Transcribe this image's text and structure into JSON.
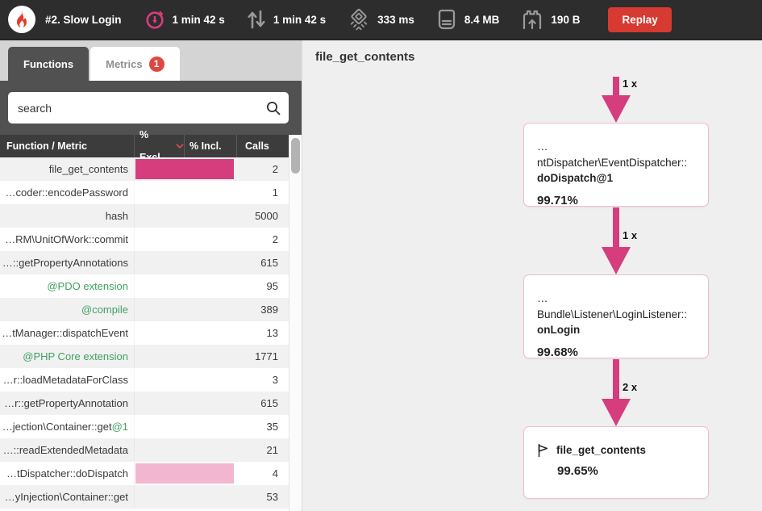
{
  "topbar": {
    "title": "#2. Slow Login",
    "stats": [
      {
        "icon": "stopwatch-icon",
        "value": "1 min 42 s"
      },
      {
        "icon": "io-arrows-icon",
        "value": "1 min 42 s"
      },
      {
        "icon": "cpu-icon",
        "value": "333 ms"
      },
      {
        "icon": "memory-icon",
        "value": "8.4 MB"
      },
      {
        "icon": "network-icon",
        "value": "190 B"
      }
    ],
    "replay_label": "Replay"
  },
  "sidebar": {
    "tabs": [
      {
        "label": "Functions",
        "active": true
      },
      {
        "label": "Metrics",
        "badge": "1"
      }
    ],
    "search": {
      "placeholder": "search"
    },
    "table": {
      "headers": [
        "Function / Metric",
        "% Excl.",
        "% Incl.",
        "Calls"
      ],
      "rows": [
        {
          "name": "file_get_contents",
          "calls": "2",
          "bar": "strong"
        },
        {
          "name": "…coder::encodePassword",
          "calls": "1"
        },
        {
          "name": "hash",
          "calls": "5000"
        },
        {
          "name": "…RM\\UnitOfWork::commit",
          "calls": "2"
        },
        {
          "name": "…::getPropertyAnnotations",
          "calls": "615"
        },
        {
          "name": "@PDO extension",
          "calls": "95",
          "green": true
        },
        {
          "name": "@compile",
          "calls": "389",
          "green": true
        },
        {
          "name": "…tManager::dispatchEvent",
          "calls": "13"
        },
        {
          "name": "@PHP Core extension",
          "calls": "1771",
          "green": true
        },
        {
          "name": "…r::loadMetadataForClass",
          "calls": "3"
        },
        {
          "name": "…r::getPropertyAnnotation",
          "calls": "615"
        },
        {
          "name": "…jection\\Container::get",
          "suffix": "@1",
          "calls": "35"
        },
        {
          "name": "…::readExtendedMetadata",
          "calls": "21"
        },
        {
          "name": "…tDispatcher::doDispatch",
          "calls": "4",
          "bar": "light"
        },
        {
          "name": "…yInjection\\Container::get",
          "calls": "53"
        }
      ]
    }
  },
  "graph": {
    "title": "file_get_contents",
    "nodes": [
      {
        "line1": "…ntDispatcher\\EventDispatcher::",
        "line2": "doDispatch@1",
        "pct": "99.71%",
        "edge": "1 x"
      },
      {
        "line1": "…Bundle\\Listener\\LoginListener::",
        "line2": "onLogin",
        "pct": "99.68%",
        "edge": "1 x"
      },
      {
        "line2": "file_get_contents",
        "pct": "99.65%",
        "edge": "2 x",
        "flag": true
      }
    ]
  },
  "colors": {
    "accent_pink": "#d63d7d",
    "light_pink": "#f3b6d0",
    "node_border": "#efbcd6",
    "green": "#41a163",
    "replay_red": "#d63a30",
    "badge_red": "#de4742",
    "topbar_bg": "#2d2d2d",
    "table_header_bg": "#3c3c3c",
    "panel_bg": "#efefef"
  }
}
